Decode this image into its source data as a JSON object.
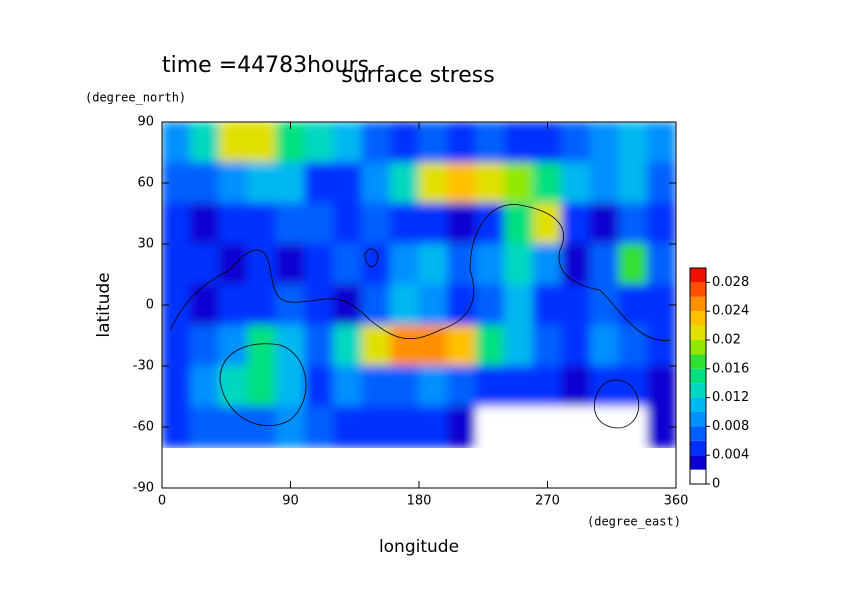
{
  "chart_data": {
    "type": "contour",
    "title": "surface stress",
    "subtitle": "time =44783hours",
    "x_label": "longitude",
    "x_unit": "(degree_east)",
    "y_label": "latitude",
    "y_unit": "(degree_north)",
    "xlim": [
      0,
      360
    ],
    "xticks": [
      0,
      90,
      180,
      270,
      360
    ],
    "ylim": [
      -90,
      90
    ],
    "yticks": [
      -90,
      -60,
      -30,
      0,
      30,
      60,
      90
    ],
    "x": [
      10,
      30,
      50,
      70,
      90,
      110,
      130,
      150,
      170,
      190,
      210,
      230,
      250,
      270,
      290,
      310,
      330,
      350
    ],
    "y": [
      80,
      60,
      40,
      20,
      0,
      -20,
      -40,
      -60
    ],
    "z": [
      [
        0.008,
        0.012,
        0.02,
        0.02,
        0.014,
        0.012,
        0.01,
        0.006,
        0.004,
        0.006,
        0.004,
        0.006,
        0.004,
        0.004,
        0.006,
        0.008,
        0.01,
        0.008
      ],
      [
        0.006,
        0.006,
        0.008,
        0.01,
        0.01,
        0.004,
        0.004,
        0.008,
        0.012,
        0.02,
        0.022,
        0.02,
        0.018,
        0.014,
        0.01,
        0.008,
        0.01,
        0.006
      ],
      [
        0.004,
        0.002,
        0.004,
        0.004,
        0.006,
        0.006,
        0.004,
        0.006,
        0.004,
        0.004,
        0.002,
        0.004,
        0.014,
        0.02,
        0.004,
        0.002,
        0.006,
        0.004
      ],
      [
        0.004,
        0.004,
        0.002,
        0.004,
        0.002,
        0.004,
        0.006,
        0.004,
        0.008,
        0.01,
        0.006,
        0.008,
        0.012,
        0.008,
        0.002,
        0.006,
        0.016,
        0.006
      ],
      [
        0.004,
        0.002,
        0.004,
        0.004,
        0.006,
        0.004,
        0.002,
        0.006,
        0.01,
        0.008,
        0.004,
        0.006,
        0.01,
        0.004,
        0.004,
        0.006,
        0.004,
        0.004
      ],
      [
        0.004,
        0.006,
        0.008,
        0.014,
        0.01,
        0.006,
        0.012,
        0.02,
        0.024,
        0.024,
        0.022,
        0.014,
        0.01,
        0.006,
        0.004,
        0.008,
        0.006,
        0.004
      ],
      [
        0.004,
        0.008,
        0.012,
        0.014,
        0.01,
        0.004,
        0.008,
        0.006,
        0.006,
        0.008,
        0.006,
        0.004,
        0.004,
        0.004,
        0.002,
        0.004,
        0.004,
        0.002
      ],
      [
        0.004,
        0.006,
        0.006,
        0.006,
        0.008,
        0.006,
        0.004,
        0.004,
        0.004,
        0.004,
        0.002,
        0,
        0,
        0,
        0,
        0,
        0,
        0.002
      ]
    ],
    "levels": [
      0,
      0.002,
      0.004,
      0.006,
      0.008,
      0.01,
      0.012,
      0.014,
      0.016,
      0.018,
      0.02,
      0.022,
      0.024,
      0.026,
      0.028,
      0.03
    ],
    "colors": [
      "#ffffff",
      "#0a00d0",
      "#0030ff",
      "#0060ff",
      "#0090ff",
      "#00b8f0",
      "#00d8c0",
      "#00e080",
      "#30e030",
      "#90e800",
      "#e0e000",
      "#ffc000",
      "#ff9000",
      "#ff5000",
      "#f01000"
    ],
    "cticks": [
      0,
      0.004,
      0.008,
      0.012,
      0.016,
      0.02,
      0.024,
      0.028
    ]
  }
}
